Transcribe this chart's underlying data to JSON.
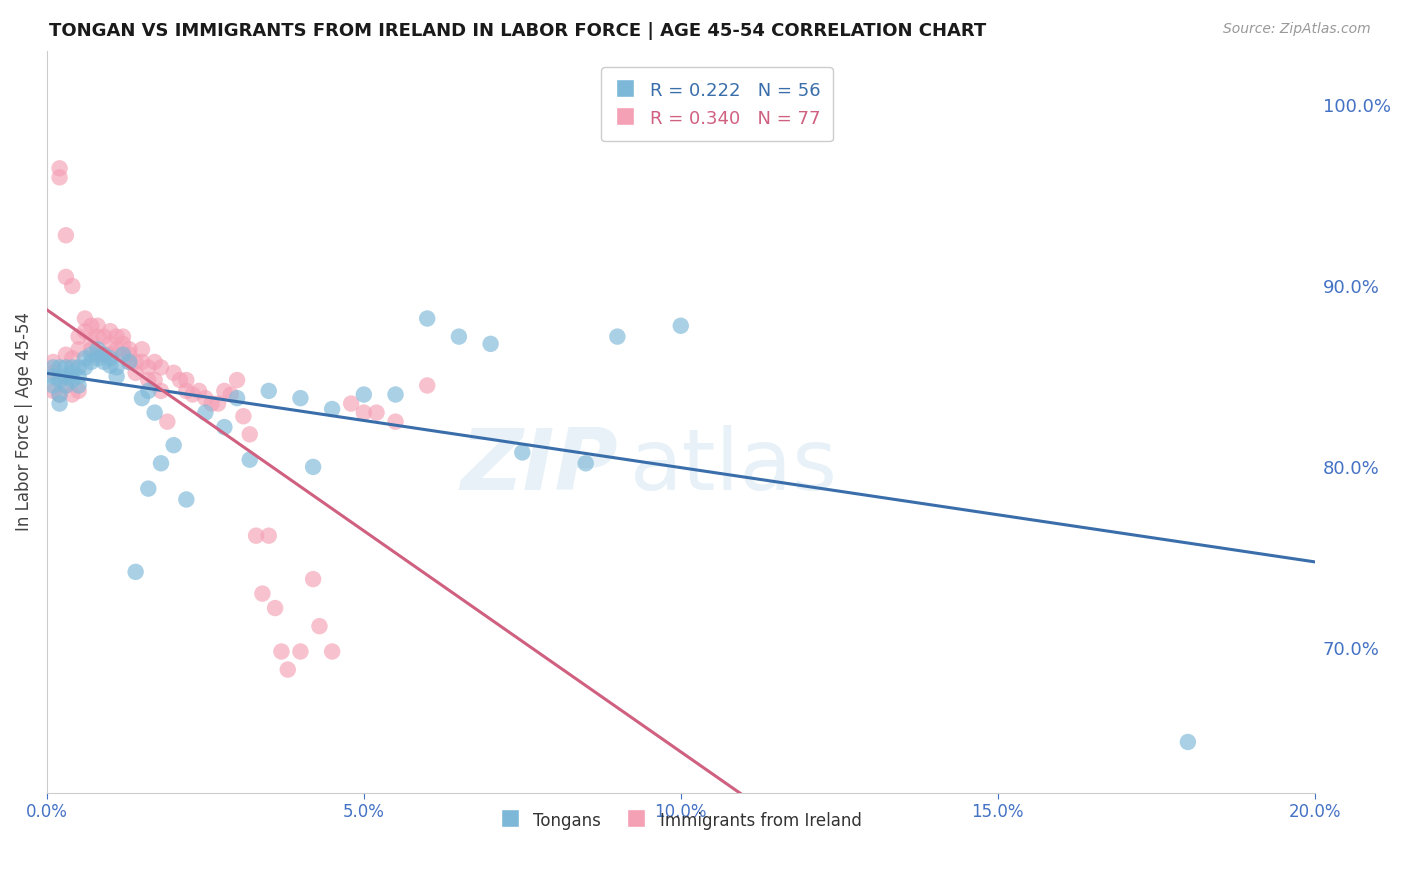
{
  "title": "TONGAN VS IMMIGRANTS FROM IRELAND IN LABOR FORCE | AGE 45-54 CORRELATION CHART",
  "source": "Source: ZipAtlas.com",
  "ylabel": "In Labor Force | Age 45-54",
  "legend_blue_label": "Tongans",
  "legend_pink_label": "Immigrants from Ireland",
  "R_blue": 0.222,
  "N_blue": 56,
  "R_pink": 0.34,
  "N_pink": 77,
  "xlim": [
    0.0,
    0.2
  ],
  "ylim": [
    0.62,
    1.03
  ],
  "yticks": [
    0.7,
    0.8,
    0.9,
    1.0
  ],
  "xticks": [
    0.0,
    0.05,
    0.1,
    0.15,
    0.2
  ],
  "blue_color": "#7db8d8",
  "pink_color": "#f4a0b5",
  "blue_line_color": "#3a6eaa",
  "pink_line_color": "#d06080",
  "watermark_zip": "ZIP",
  "watermark_atlas": "atlas",
  "blue_scatter_x": [
    0.001,
    0.001,
    0.001,
    0.002,
    0.002,
    0.002,
    0.002,
    0.003,
    0.003,
    0.003,
    0.004,
    0.004,
    0.004,
    0.005,
    0.005,
    0.005,
    0.006,
    0.006,
    0.007,
    0.007,
    0.008,
    0.008,
    0.009,
    0.009,
    0.01,
    0.01,
    0.011,
    0.011,
    0.012,
    0.013,
    0.014,
    0.015,
    0.016,
    0.016,
    0.017,
    0.018,
    0.02,
    0.022,
    0.025,
    0.028,
    0.03,
    0.032,
    0.035,
    0.04,
    0.042,
    0.045,
    0.05,
    0.055,
    0.06,
    0.065,
    0.07,
    0.075,
    0.085,
    0.09,
    0.1,
    0.18
  ],
  "blue_scatter_y": [
    0.855,
    0.845,
    0.85,
    0.855,
    0.848,
    0.84,
    0.835,
    0.855,
    0.85,
    0.845,
    0.855,
    0.852,
    0.848,
    0.855,
    0.85,
    0.845,
    0.86,
    0.855,
    0.862,
    0.858,
    0.865,
    0.86,
    0.862,
    0.858,
    0.86,
    0.856,
    0.855,
    0.85,
    0.862,
    0.858,
    0.742,
    0.838,
    0.842,
    0.788,
    0.83,
    0.802,
    0.812,
    0.782,
    0.83,
    0.822,
    0.838,
    0.804,
    0.842,
    0.838,
    0.8,
    0.832,
    0.84,
    0.84,
    0.882,
    0.872,
    0.868,
    0.808,
    0.802,
    0.872,
    0.878,
    0.648
  ],
  "pink_scatter_x": [
    0.001,
    0.001,
    0.001,
    0.002,
    0.002,
    0.002,
    0.003,
    0.003,
    0.003,
    0.003,
    0.004,
    0.004,
    0.004,
    0.005,
    0.005,
    0.005,
    0.006,
    0.006,
    0.007,
    0.007,
    0.007,
    0.008,
    0.008,
    0.008,
    0.009,
    0.009,
    0.01,
    0.01,
    0.01,
    0.011,
    0.011,
    0.012,
    0.012,
    0.012,
    0.013,
    0.013,
    0.013,
    0.014,
    0.014,
    0.015,
    0.015,
    0.016,
    0.016,
    0.017,
    0.017,
    0.018,
    0.018,
    0.019,
    0.02,
    0.021,
    0.022,
    0.022,
    0.023,
    0.024,
    0.025,
    0.026,
    0.027,
    0.028,
    0.029,
    0.03,
    0.031,
    0.032,
    0.033,
    0.034,
    0.035,
    0.036,
    0.037,
    0.038,
    0.04,
    0.042,
    0.043,
    0.045,
    0.048,
    0.05,
    0.052,
    0.055,
    0.06
  ],
  "pink_scatter_y": [
    0.858,
    0.852,
    0.842,
    0.965,
    0.96,
    0.84,
    0.928,
    0.905,
    0.862,
    0.845,
    0.86,
    0.9,
    0.84,
    0.872,
    0.865,
    0.842,
    0.882,
    0.875,
    0.878,
    0.87,
    0.865,
    0.878,
    0.872,
    0.862,
    0.872,
    0.862,
    0.875,
    0.868,
    0.862,
    0.872,
    0.865,
    0.872,
    0.868,
    0.862,
    0.865,
    0.858,
    0.862,
    0.858,
    0.852,
    0.865,
    0.858,
    0.855,
    0.848,
    0.858,
    0.848,
    0.855,
    0.842,
    0.825,
    0.852,
    0.848,
    0.848,
    0.842,
    0.84,
    0.842,
    0.838,
    0.835,
    0.835,
    0.842,
    0.84,
    0.848,
    0.828,
    0.818,
    0.762,
    0.73,
    0.762,
    0.722,
    0.698,
    0.688,
    0.698,
    0.738,
    0.712,
    0.698,
    0.835,
    0.83,
    0.83,
    0.825,
    0.845
  ]
}
